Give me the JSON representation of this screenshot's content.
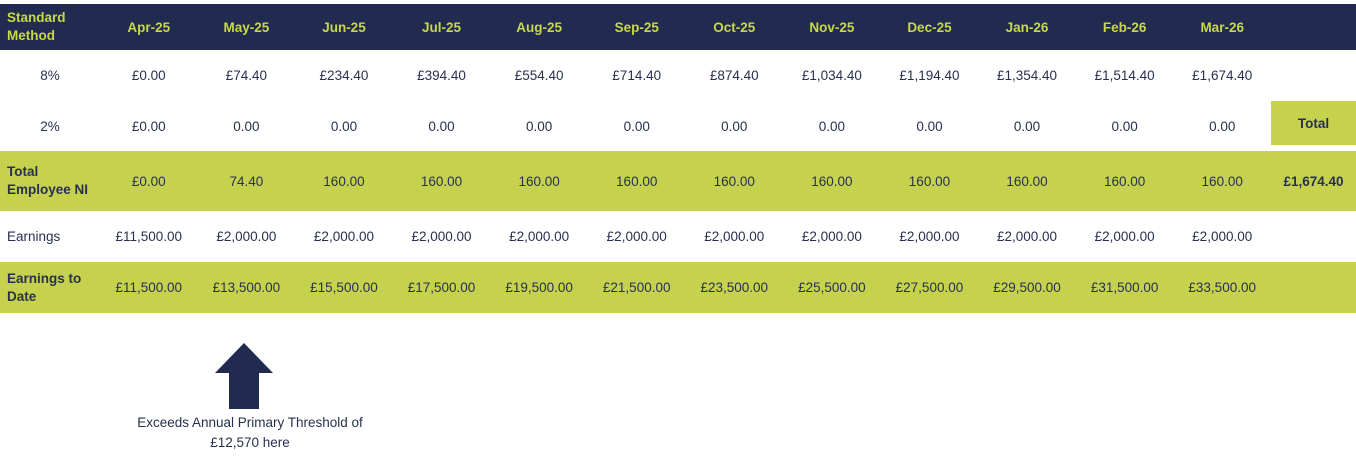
{
  "colors": {
    "header_navy": "#212b4f",
    "highlight_green": "#c6d24e",
    "header_text_lime": "#c8d848",
    "value_text_navy": "#27304f"
  },
  "chart_data": {
    "type": "table",
    "title": "Standard Method",
    "columns": [
      "Apr-25",
      "May-25",
      "Jun-25",
      "Jul-25",
      "Aug-25",
      "Sep-25",
      "Oct-25",
      "Nov-25",
      "Dec-25",
      "Jan-26",
      "Feb-26",
      "Mar-26"
    ],
    "total_column_label": "Total",
    "rows": [
      {
        "label": "8%",
        "values": [
          "£0.00",
          "£74.40",
          "£234.40",
          "£394.40",
          "£554.40",
          "£714.40",
          "£874.40",
          "£1,034.40",
          "£1,194.40",
          "£1,354.40",
          "£1,514.40",
          "£1,674.40"
        ],
        "total": ""
      },
      {
        "label": "2%",
        "values": [
          "£0.00",
          "0.00",
          "0.00",
          "0.00",
          "0.00",
          "0.00",
          "0.00",
          "0.00",
          "0.00",
          "0.00",
          "0.00",
          "0.00"
        ],
        "total": ""
      },
      {
        "label": "Total Employee NI",
        "values": [
          "£0.00",
          "74.40",
          "160.00",
          "160.00",
          "160.00",
          "160.00",
          "160.00",
          "160.00",
          "160.00",
          "160.00",
          "160.00",
          "160.00"
        ],
        "total": "£1,674.40"
      },
      {
        "label": "Earnings",
        "values": [
          "£11,500.00",
          "£2,000.00",
          "£2,000.00",
          "£2,000.00",
          "£2,000.00",
          "£2,000.00",
          "£2,000.00",
          "£2,000.00",
          "£2,000.00",
          "£2,000.00",
          "£2,000.00",
          "£2,000.00"
        ],
        "total": ""
      },
      {
        "label": "Earnings to Date",
        "values": [
          "£11,500.00",
          "£13,500.00",
          "£15,500.00",
          "£17,500.00",
          "£19,500.00",
          "£21,500.00",
          "£23,500.00",
          "£25,500.00",
          "£27,500.00",
          "£29,500.00",
          "£31,500.00",
          "£33,500.00"
        ],
        "total": ""
      }
    ],
    "annotation": {
      "arrow_points_to_column": "May-25",
      "text": "Exceeds Annual Primary Threshold of £12,570 here"
    }
  },
  "annotation": {
    "line1": "Exceeds Annual Primary Threshold of",
    "line2": "£12,570 here"
  }
}
